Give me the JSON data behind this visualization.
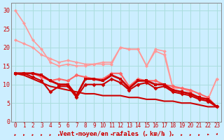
{
  "x": [
    0,
    1,
    2,
    3,
    4,
    5,
    6,
    7,
    8,
    9,
    10,
    11,
    12,
    13,
    14,
    15,
    16,
    17,
    18,
    19,
    20,
    21,
    22,
    23
  ],
  "bg_color": "#cceeff",
  "grid_color": "#aadddd",
  "xlabel": "Vent moyen/en rafales ( km/h )",
  "ylabel_ticks": [
    0,
    5,
    10,
    15,
    20,
    25,
    30
  ],
  "line1": {
    "color": "#ff9999",
    "lw": 1.2,
    "marker": "D",
    "ms": 2.5,
    "y": [
      30,
      26.5,
      22,
      19.5,
      16,
      15,
      15.5,
      15,
      15,
      15.5,
      15.5,
      15.5,
      20,
      19.5,
      19.5,
      15,
      19.5,
      19,
      9,
      9,
      8,
      6,
      6,
      11.5
    ]
  },
  "line2": {
    "color": "#ff9999",
    "lw": 1.2,
    "marker": "D",
    "ms": 2.5,
    "y": [
      22,
      21,
      20,
      18,
      17,
      16,
      16.5,
      16,
      15.5,
      15.5,
      16,
      16,
      20,
      19.5,
      19.5,
      15,
      19,
      18,
      9,
      9,
      8,
      6,
      6,
      11.5
    ]
  },
  "line3": {
    "color": "#ff6666",
    "lw": 1.5,
    "marker": "D",
    "ms": 3,
    "y": [
      13,
      13,
      13,
      12,
      11,
      11.5,
      11,
      12.5,
      12,
      11.5,
      11.5,
      13,
      13,
      9.5,
      11.5,
      11,
      11,
      10,
      9.5,
      9,
      8.5,
      7.5,
      6.5,
      4
    ]
  },
  "line4": {
    "color": "#cc0000",
    "lw": 2.0,
    "marker": "s",
    "ms": 3,
    "y": [
      13,
      13,
      13,
      12.5,
      11,
      10,
      10,
      7,
      11.5,
      11.5,
      11,
      12.5,
      11.5,
      9,
      11,
      11,
      10,
      10,
      8.5,
      8,
      7.5,
      6.5,
      6,
      4
    ]
  },
  "line5": {
    "color": "#cc0000",
    "lw": 1.5,
    "marker": "D",
    "ms": 3,
    "y": [
      13,
      13,
      12,
      11,
      8,
      9.5,
      9.5,
      6.5,
      10,
      10,
      10,
      11.5,
      10.5,
      8.5,
      10,
      10.5,
      9,
      9.5,
      8,
      7.5,
      7,
      6,
      5.5,
      4
    ]
  },
  "line6": {
    "color": "#cc0000",
    "lw": 1.5,
    "marker": "None",
    "ms": 0,
    "y": [
      13,
      12.5,
      11.5,
      10.5,
      9.5,
      9,
      8.5,
      8,
      7.5,
      7.5,
      7,
      7,
      7,
      6.5,
      6.5,
      6,
      6,
      5.5,
      5.5,
      5,
      5,
      4.5,
      4,
      4
    ]
  },
  "arrow_color": "#cc0000",
  "xlim": [
    -0.5,
    23.5
  ],
  "ylim": [
    0,
    32
  ]
}
